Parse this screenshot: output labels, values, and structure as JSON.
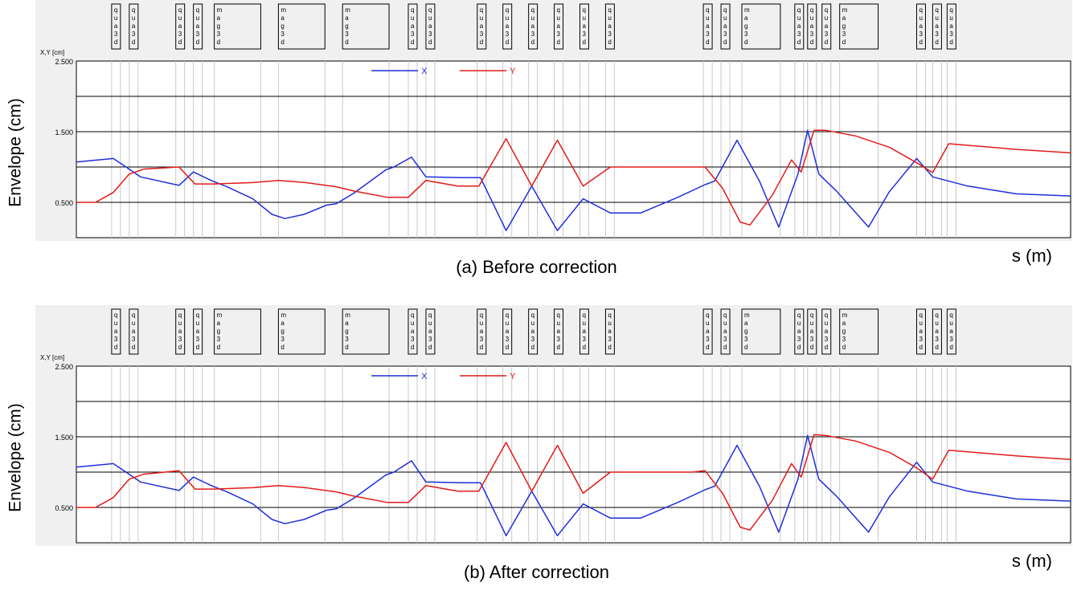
{
  "colors": {
    "x_series": "#1f2fd9",
    "y_series": "#e31a1a",
    "frame_bg": "#f0f0f0",
    "grid": "#000000",
    "element_line": "#c8c8c8"
  },
  "elements": [
    {
      "s": 2.2,
      "w": 0.55,
      "type": "quad",
      "label": "quad"
    },
    {
      "s": 3.3,
      "w": 0.55,
      "type": "quad",
      "label": "quad"
    },
    {
      "s": 6.2,
      "w": 0.55,
      "type": "quad",
      "label": "quad"
    },
    {
      "s": 7.3,
      "w": 0.55,
      "type": "quad",
      "label": "quad"
    },
    {
      "s": 8.6,
      "w": 2.9,
      "type": "mag",
      "label": "mag"
    },
    {
      "s": 12.6,
      "w": 2.9,
      "type": "mag",
      "label": "mag"
    },
    {
      "s": 16.6,
      "w": 2.9,
      "type": "mag",
      "label": "mag"
    },
    {
      "s": 20.7,
      "w": 0.55,
      "type": "quad",
      "label": "quad"
    },
    {
      "s": 21.8,
      "w": 0.55,
      "type": "quad",
      "label": "quad"
    },
    {
      "s": 25.0,
      "w": 0.55,
      "type": "quad",
      "label": "quad"
    },
    {
      "s": 26.6,
      "w": 0.55,
      "type": "quad",
      "label": "quad"
    },
    {
      "s": 28.2,
      "w": 0.55,
      "type": "quad",
      "label": "quad"
    },
    {
      "s": 29.8,
      "w": 0.55,
      "type": "quad",
      "label": "quad"
    },
    {
      "s": 31.4,
      "w": 0.55,
      "type": "quad",
      "label": "quad"
    },
    {
      "s": 33.0,
      "w": 0.55,
      "type": "quad",
      "label": "quad"
    },
    {
      "s": 39.1,
      "w": 0.55,
      "type": "quad",
      "label": "quad"
    },
    {
      "s": 40.2,
      "w": 0.55,
      "type": "quad",
      "label": "quad"
    },
    {
      "s": 41.5,
      "w": 2.4,
      "type": "mag",
      "label": "mag"
    },
    {
      "s": 44.8,
      "w": 0.55,
      "type": "quad",
      "label": "quad"
    },
    {
      "s": 45.6,
      "w": 0.55,
      "type": "quad",
      "label": "quad"
    },
    {
      "s": 46.5,
      "w": 0.55,
      "type": "quad",
      "label": "quad"
    },
    {
      "s": 47.6,
      "w": 2.4,
      "type": "mag",
      "label": "mag"
    },
    {
      "s": 52.4,
      "w": 0.55,
      "type": "quad",
      "label": "quad"
    },
    {
      "s": 53.4,
      "w": 0.55,
      "type": "quad",
      "label": "quad"
    },
    {
      "s": 54.3,
      "w": 0.55,
      "type": "quad",
      "label": "quad"
    }
  ],
  "panels": [
    {
      "id": "a",
      "caption": "(a)  Before correction",
      "ylabel": "Envelope (cm)",
      "xlabel": "s (m)",
      "chart_data": {
        "type": "line",
        "axis_unit_label": "X,Y [cm]",
        "yticks": [
          "2.500",
          "1.500",
          "0.500"
        ],
        "ylim": [
          0.0,
          2.5
        ],
        "xlim": [
          0,
          62
        ],
        "grid": true,
        "legend": "top-center",
        "series": [
          {
            "name": "X",
            "x": [
              0,
              2.3,
              3.1,
              4.0,
              6.4,
              7.3,
              8.5,
              9.4,
              11,
              12.2,
              13.0,
              14.2,
              15.6,
              16.2,
              17.3,
              19.3,
              19.8,
              20.9,
              21.8,
              24.0,
              25.2,
              26.8,
              28.4,
              30.0,
              31.6,
              33.3,
              35.2,
              37.5,
              39.2,
              39.8,
              41.2,
              42.6,
              43.8,
              45.0,
              45.6,
              46.3,
              47.4,
              49.4,
              50.7,
              52.4,
              53.4,
              55.6,
              58.6,
              62.0
            ],
            "y": [
              1.07,
              1.12,
              1.0,
              0.86,
              0.74,
              0.93,
              0.8,
              0.72,
              0.55,
              0.33,
              0.27,
              0.33,
              0.46,
              0.48,
              0.63,
              0.96,
              1.0,
              1.14,
              0.86,
              0.85,
              0.85,
              0.1,
              0.73,
              0.1,
              0.55,
              0.35,
              0.35,
              0.57,
              0.75,
              0.8,
              1.38,
              0.8,
              0.15,
              0.9,
              1.52,
              0.9,
              0.66,
              0.15,
              0.65,
              1.12,
              0.86,
              0.73,
              0.62,
              0.59
            ]
          },
          {
            "name": "Y",
            "x": [
              0,
              1.2,
              2.3,
              3.3,
              4.2,
              6.4,
              7.4,
              8.6,
              11,
              12.6,
              14.3,
              16.2,
              17.3,
              19.4,
              20.7,
              21.8,
              23.8,
              25.1,
              26.8,
              28.4,
              30.0,
              31.6,
              33.3,
              36.0,
              37.4,
              38.4,
              39.2,
              40.3,
              41.4,
              42.0,
              43.4,
              44.6,
              45.2,
              46.0,
              46.7,
              48.6,
              50.7,
              52.4,
              53.4,
              54.4,
              58.6,
              62.0
            ],
            "y": [
              0.5,
              0.5,
              0.64,
              0.9,
              0.97,
              1.0,
              0.76,
              0.76,
              0.78,
              0.81,
              0.78,
              0.72,
              0.66,
              0.57,
              0.57,
              0.81,
              0.73,
              0.73,
              1.4,
              0.73,
              1.38,
              0.73,
              1.0,
              1.0,
              1.0,
              1.0,
              1.0,
              0.7,
              0.22,
              0.18,
              0.6,
              1.1,
              0.93,
              1.52,
              1.52,
              1.44,
              1.28,
              1.06,
              0.92,
              1.33,
              1.25,
              1.2
            ]
          }
        ]
      }
    },
    {
      "id": "b",
      "caption": "(b) After correction",
      "ylabel": "Envelope (cm)",
      "xlabel": "s (m)",
      "chart_data": {
        "type": "line",
        "axis_unit_label": "X,Y [cm]",
        "yticks": [
          "2.500",
          "1.500",
          "0.500"
        ],
        "ylim": [
          0.0,
          2.5
        ],
        "xlim": [
          0,
          62
        ],
        "grid": true,
        "legend": "top-center",
        "series": [
          {
            "name": "X",
            "x": [
              0,
              2.3,
              3.1,
              4.0,
              6.4,
              7.3,
              8.5,
              9.4,
              11,
              12.2,
              13.0,
              14.2,
              15.6,
              16.2,
              17.3,
              19.3,
              19.8,
              20.9,
              21.8,
              24.0,
              25.2,
              26.8,
              28.4,
              30.0,
              31.6,
              33.3,
              35.2,
              37.5,
              39.2,
              39.8,
              41.2,
              42.6,
              43.8,
              45.0,
              45.6,
              46.3,
              47.4,
              49.4,
              50.7,
              52.4,
              53.4,
              55.6,
              58.6,
              62.0
            ],
            "y": [
              1.07,
              1.12,
              1.0,
              0.86,
              0.74,
              0.93,
              0.8,
              0.72,
              0.55,
              0.33,
              0.27,
              0.33,
              0.46,
              0.48,
              0.63,
              0.96,
              1.0,
              1.16,
              0.86,
              0.85,
              0.85,
              0.1,
              0.73,
              0.1,
              0.55,
              0.35,
              0.35,
              0.57,
              0.75,
              0.8,
              1.38,
              0.8,
              0.15,
              0.9,
              1.52,
              0.9,
              0.66,
              0.15,
              0.65,
              1.14,
              0.86,
              0.73,
              0.62,
              0.59
            ]
          },
          {
            "name": "Y",
            "x": [
              0,
              1.2,
              2.3,
              3.3,
              4.2,
              6.4,
              7.4,
              8.6,
              11,
              12.6,
              14.3,
              16.2,
              17.3,
              19.4,
              20.7,
              21.8,
              23.8,
              25.1,
              26.8,
              28.4,
              30.0,
              31.6,
              33.3,
              36.0,
              37.4,
              38.4,
              39.2,
              40.3,
              41.4,
              42.0,
              43.4,
              44.6,
              45.2,
              46.0,
              46.7,
              48.6,
              50.7,
              52.4,
              53.4,
              54.4,
              58.6,
              62.0
            ],
            "y": [
              0.5,
              0.5,
              0.64,
              0.9,
              0.97,
              1.02,
              0.76,
              0.76,
              0.78,
              0.81,
              0.78,
              0.72,
              0.66,
              0.57,
              0.57,
              0.81,
              0.73,
              0.73,
              1.42,
              0.73,
              1.38,
              0.7,
              1.0,
              1.0,
              1.0,
              1.0,
              1.02,
              0.7,
              0.22,
              0.18,
              0.6,
              1.12,
              0.93,
              1.53,
              1.52,
              1.44,
              1.28,
              1.06,
              0.9,
              1.31,
              1.23,
              1.18
            ]
          }
        ]
      }
    }
  ]
}
